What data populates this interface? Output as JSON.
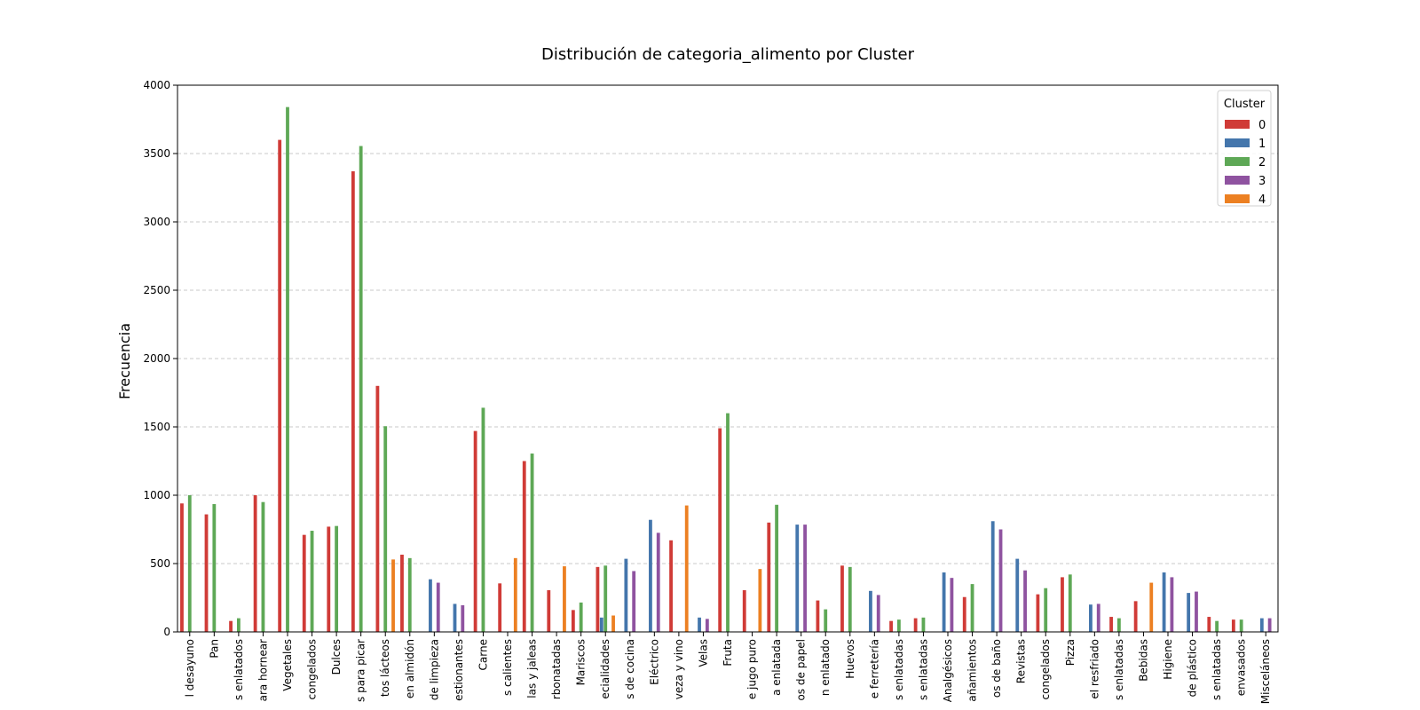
{
  "chart_data": {
    "type": "bar",
    "title": "Distribución de categoria_alimento por Cluster",
    "xlabel": "",
    "ylabel": "Frecuencia",
    "ylim": [
      0,
      4000
    ],
    "yticks": [
      0,
      500,
      1000,
      1500,
      2000,
      2500,
      3000,
      3500,
      4000
    ],
    "grid": "horizontal dashed",
    "legend": {
      "title": "Cluster",
      "position": "top-right"
    },
    "categories": [
      "l desayuno",
      "Pan",
      "s enlatados",
      "ara hornear",
      "Vegetales",
      "congelados",
      "Dulces",
      "s para picar",
      "tos lácteos",
      "en almidón",
      "de limpieza",
      "estionantes",
      "Carne",
      "s calientes",
      "las y jaleas",
      "rbonatadas",
      "Mariscos",
      "ecialidades",
      "s de cocina",
      "Eléctrico",
      "veza y vino",
      "Velas",
      "Fruta",
      "e jugo puro",
      "a enlatada",
      "os de papel",
      "n enlatado",
      "Huevos",
      "e ferretería",
      "s enlatadas",
      "s enlatadas",
      "Analgésicos",
      "añamientos",
      "os de baño",
      "Revistas",
      "congelados",
      "Pizza",
      "el resfriado",
      "s enlatadas",
      "Bebidas",
      "Higiene",
      "de plástico",
      "s enlatadas",
      "envasados",
      "Misceláneos"
    ],
    "series": [
      {
        "name": "0",
        "color": "#d03b37",
        "values": [
          940,
          860,
          80,
          1000,
          3600,
          710,
          770,
          3370,
          1800,
          565,
          0,
          0,
          1470,
          355,
          1250,
          305,
          160,
          475,
          0,
          0,
          670,
          0,
          1490,
          305,
          800,
          0,
          230,
          485,
          0,
          80,
          100,
          0,
          255,
          0,
          0,
          275,
          400,
          0,
          110,
          225,
          0,
          0,
          110,
          90,
          0
        ]
      },
      {
        "name": "1",
        "color": "#4476ac",
        "values": [
          0,
          0,
          0,
          0,
          0,
          0,
          0,
          0,
          0,
          0,
          385,
          205,
          0,
          0,
          0,
          0,
          0,
          105,
          535,
          820,
          0,
          105,
          0,
          0,
          0,
          785,
          0,
          0,
          300,
          0,
          0,
          435,
          0,
          810,
          535,
          0,
          0,
          200,
          0,
          0,
          435,
          285,
          0,
          0,
          100
        ]
      },
      {
        "name": "2",
        "color": "#5ea856",
        "values": [
          1000,
          935,
          100,
          950,
          3840,
          740,
          775,
          3555,
          1505,
          540,
          0,
          0,
          1640,
          0,
          1305,
          0,
          215,
          485,
          0,
          0,
          0,
          0,
          1600,
          0,
          930,
          0,
          165,
          475,
          0,
          90,
          105,
          0,
          350,
          0,
          0,
          320,
          420,
          0,
          100,
          0,
          0,
          0,
          80,
          90,
          0
        ]
      },
      {
        "name": "3",
        "color": "#8f53a0",
        "values": [
          0,
          0,
          0,
          0,
          0,
          0,
          0,
          0,
          0,
          0,
          360,
          195,
          0,
          0,
          0,
          0,
          0,
          0,
          445,
          725,
          0,
          95,
          0,
          0,
          0,
          785,
          0,
          0,
          270,
          0,
          0,
          395,
          0,
          750,
          450,
          0,
          0,
          205,
          0,
          0,
          400,
          295,
          0,
          0,
          100
        ]
      },
      {
        "name": "4",
        "color": "#ec8022",
        "values": [
          0,
          0,
          0,
          0,
          0,
          0,
          0,
          0,
          530,
          0,
          0,
          0,
          0,
          540,
          0,
          480,
          0,
          120,
          0,
          0,
          925,
          0,
          0,
          460,
          0,
          0,
          0,
          0,
          0,
          0,
          0,
          0,
          0,
          0,
          0,
          0,
          0,
          0,
          0,
          360,
          0,
          0,
          0,
          0,
          0
        ]
      }
    ]
  }
}
